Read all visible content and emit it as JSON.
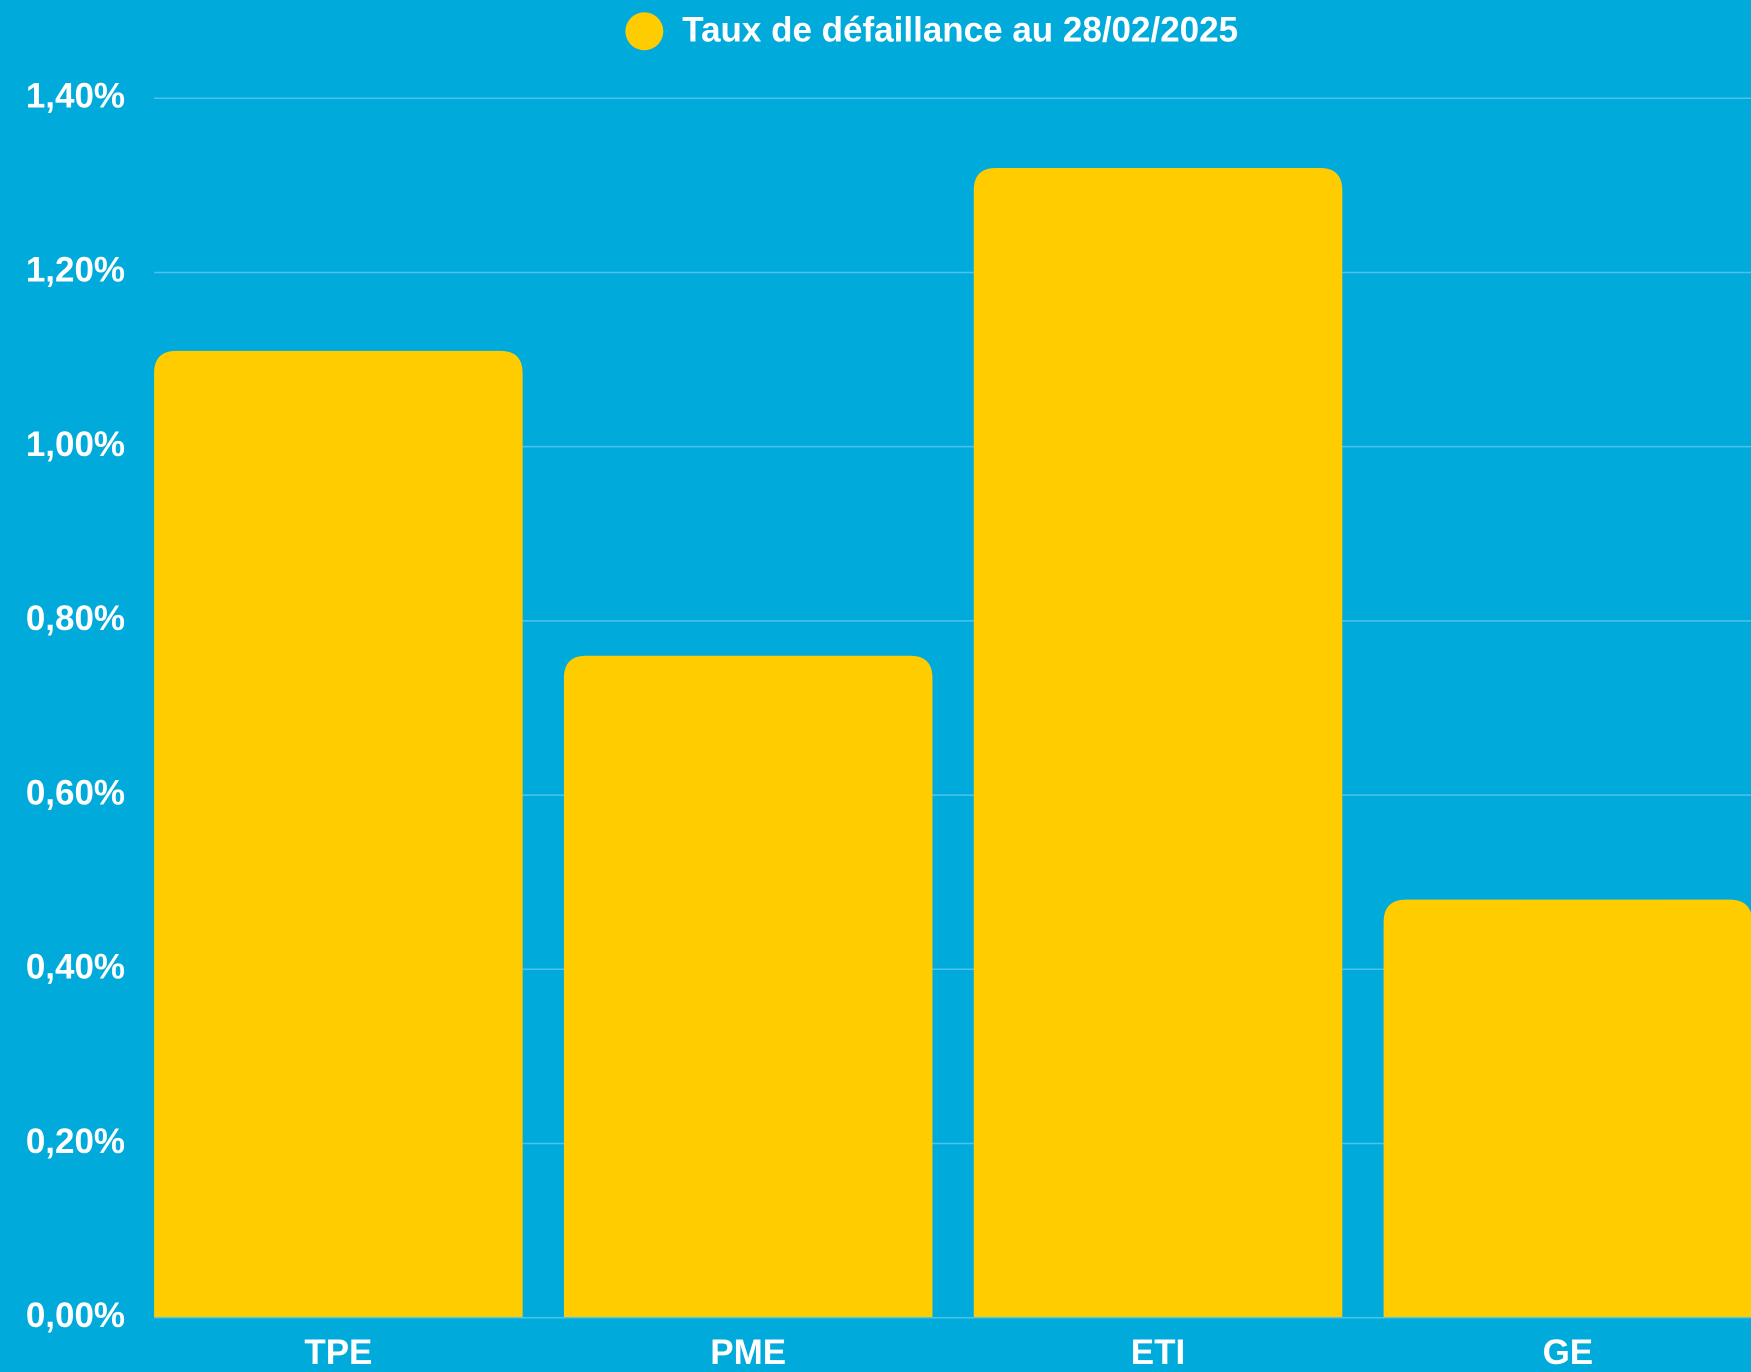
{
  "chart_data": {
    "type": "bar",
    "categories": [
      "TPE",
      "PME",
      "ETI",
      "GE"
    ],
    "series": [
      {
        "name": "Taux de défaillance au 28/02/2025",
        "color": "#ffcc00",
        "values": [
          1.11,
          0.76,
          1.32,
          0.48
        ]
      }
    ],
    "ylim": [
      0,
      1.4
    ],
    "yticks": [
      {
        "value": 0,
        "label": "0,00%"
      },
      {
        "value": 0.2,
        "label": "0,20%"
      },
      {
        "value": 0.4,
        "label": "0,40%"
      },
      {
        "value": 0.6,
        "label": "0,60%"
      },
      {
        "value": 0.8,
        "label": "0,80%"
      },
      {
        "value": 1.0,
        "label": "1,00%"
      },
      {
        "value": 1.2,
        "label": "1,20%"
      },
      {
        "value": 1.4,
        "label": "1,40%"
      }
    ],
    "grid": true,
    "legend": "top"
  }
}
